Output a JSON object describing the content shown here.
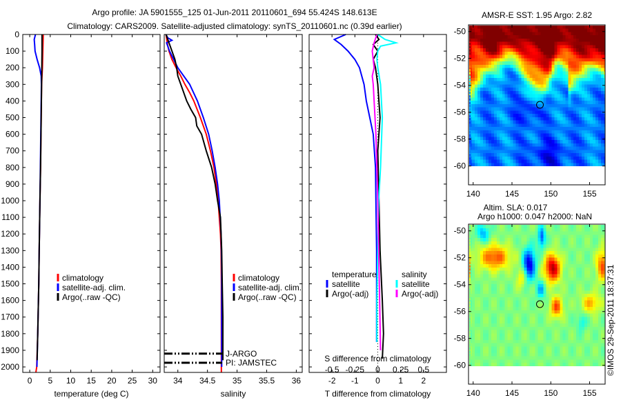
{
  "title": {
    "line1": "Argo profile: JA 5901555_125 01-Jun-2011 20110601_694 55.424S 148.613E",
    "line2": "Climatology: CARS2009. Satellite-adjusted climatology: synTS_20110601.nc (0.39d earlier)"
  },
  "colors": {
    "climatology": "#ff0000",
    "satellite": "#0000ff",
    "argo": "#000000",
    "sal_satellite": "#00ffff",
    "sal_argo": "#ff00ff"
  },
  "watermark": "©IMOS 29-Sep-2011 18:37:31",
  "chart_data": [
    {
      "type": "line",
      "name": "temperature-profile",
      "xlabel": "temperature (deg C)",
      "ylabel": "",
      "xlim": [
        -1.7,
        31.8
      ],
      "ylim": [
        2033,
        0
      ],
      "xticks": [
        "0",
        "5",
        "10",
        "15",
        "20",
        "25",
        "30"
      ],
      "xtick_values": [
        0,
        5,
        10,
        15,
        20,
        25,
        30
      ],
      "yticks": [
        "0",
        "100",
        "200",
        "300",
        "400",
        "500",
        "600",
        "700",
        "800",
        "900",
        "1000",
        "1100",
        "1200",
        "1300",
        "1400",
        "1500",
        "1600",
        "1700",
        "1800",
        "1900",
        "2000"
      ],
      "legend": [
        "climatology",
        "satellite-adj. clim.",
        "Argo(..raw -QC)"
      ],
      "legend_position": "lower-center",
      "series": [
        {
          "name": "climatology",
          "depth": [
            0,
            100,
            200,
            300,
            500,
            800,
            1000,
            1300,
            1500,
            1800,
            2000,
            2033
          ],
          "values": [
            3.3,
            3.2,
            3.1,
            2.9,
            2.8,
            2.65,
            2.5,
            2.3,
            2.2,
            1.95,
            1.7,
            1.5
          ]
        },
        {
          "name": "satellite-adj. clim.",
          "depth": [
            0,
            30,
            60,
            100,
            150,
            200,
            250,
            300,
            400,
            500,
            800,
            1000,
            1300,
            1500,
            1800,
            2000
          ],
          "values": [
            1.4,
            1.1,
            1.2,
            1.3,
            1.8,
            2.4,
            2.8,
            2.85,
            2.8,
            2.75,
            2.6,
            2.5,
            2.3,
            2.2,
            1.95,
            1.75
          ]
        },
        {
          "name": "Argo(..raw -QC)",
          "depth": [
            0,
            50,
            100,
            200,
            300,
            500,
            800,
            1000,
            1300,
            1500,
            1800,
            1960
          ],
          "values": [
            3.0,
            3.0,
            3.0,
            2.95,
            2.9,
            2.8,
            2.65,
            2.5,
            2.3,
            2.2,
            1.95,
            1.8
          ]
        }
      ]
    },
    {
      "type": "line",
      "name": "salinity-profile",
      "xlabel": "salinity",
      "xlim": [
        33.77,
        36.1
      ],
      "ylim": [
        2033,
        0
      ],
      "xticks": [
        "34",
        "34.5",
        "35",
        "35.5",
        "36"
      ],
      "xtick_values": [
        34,
        34.5,
        35,
        35.5,
        36
      ],
      "legend": [
        "climatology",
        "satellite-adj. clim.",
        "Argo(..raw -QC)"
      ],
      "legend_position": "lower-center",
      "annotations": [
        "J-ARGO",
        "PI: JAMSTEC"
      ],
      "series": [
        {
          "name": "climatology",
          "depth": [
            0,
            50,
            100,
            150,
            200,
            250,
            300,
            350,
            400,
            500,
            600,
            700,
            800,
            900,
            1000,
            1100,
            1200,
            1300,
            1500,
            2000,
            2033
          ],
          "values": [
            33.8,
            33.82,
            33.85,
            33.9,
            33.97,
            34.05,
            34.12,
            34.2,
            34.27,
            34.38,
            34.48,
            34.55,
            34.61,
            34.65,
            34.68,
            34.7,
            34.72,
            34.73,
            34.735,
            34.735,
            34.735
          ]
        },
        {
          "name": "satellite-adj. clim.",
          "depth": [
            0,
            20,
            35,
            50,
            100,
            200,
            300,
            400,
            500,
            600,
            700,
            800,
            900,
            1000,
            1200,
            1400,
            2000
          ],
          "values": [
            33.8,
            33.83,
            33.9,
            33.81,
            33.86,
            34.0,
            34.2,
            34.33,
            34.43,
            34.52,
            34.58,
            34.63,
            34.67,
            34.7,
            34.73,
            34.74,
            34.74
          ]
        },
        {
          "name": "Argo(..raw -QC)",
          "depth": [
            0,
            100,
            150,
            200,
            250,
            300,
            400,
            450,
            500,
            550,
            600,
            700,
            800,
            900,
            1000,
            1100,
            1300,
            1500,
            1700,
            1900,
            1960
          ],
          "values": [
            33.8,
            33.9,
            33.95,
            33.98,
            34.0,
            34.05,
            34.15,
            34.22,
            34.3,
            34.32,
            34.4,
            34.48,
            34.57,
            34.63,
            34.67,
            34.72,
            34.74,
            34.75,
            34.76,
            34.76,
            34.76
          ]
        }
      ]
    },
    {
      "type": "line",
      "name": "difference-profile",
      "xlabel": "T difference from climatology",
      "xlabel2": "S difference from climatology",
      "xlim": [
        -3,
        3
      ],
      "xlim_S": [
        -0.75,
        0.75
      ],
      "ylim": [
        2033,
        0
      ],
      "xticks": [
        "-2",
        "-1",
        "0",
        "1",
        "2"
      ],
      "xtick_values": [
        -2,
        -1,
        0,
        1,
        2
      ],
      "xticks_S": [
        "-0.5",
        "-0.25",
        "0",
        "0.25",
        "0.5"
      ],
      "xtick_values_S": [
        -0.5,
        -0.25,
        0,
        0.25,
        0.5
      ],
      "legend_headers": [
        "temperature",
        "salinity"
      ],
      "legend": {
        "t_sat": "satellite",
        "t_argo": "Argo(-adj)",
        "s_sat": "satellite",
        "s_argo": "Argo(-adj)"
      },
      "series": [
        {
          "name": "T satellite",
          "axis": "T",
          "depth": [
            0,
            30,
            60,
            100,
            150,
            200,
            300,
            400,
            500,
            600,
            800,
            1000,
            1300,
            1500,
            1800,
            1850
          ],
          "values": [
            -1.4,
            -1.9,
            -1.6,
            -1.3,
            -1.0,
            -0.8,
            -0.6,
            -0.5,
            -0.35,
            -0.2,
            -0.1,
            -0.08,
            -0.05,
            -0.05,
            -0.05,
            -0.05
          ]
        },
        {
          "name": "T Argo(-adj)",
          "axis": "T",
          "depth": [
            0,
            30,
            60,
            100,
            150,
            200,
            300,
            500,
            700,
            1000,
            1300,
            1600,
            1800,
            1950
          ],
          "values": [
            -0.1,
            0.05,
            -0.2,
            0.0,
            -0.2,
            -0.1,
            0.0,
            0.1,
            0.0,
            0.05,
            0.1,
            0.2,
            0.25,
            0.2
          ]
        },
        {
          "name": "S satellite",
          "axis": "S",
          "depth": [
            0,
            30,
            50,
            70,
            100,
            150,
            200,
            300,
            500,
            800,
            1000,
            1300,
            1600,
            1850
          ],
          "values": [
            0.0,
            0.08,
            0.2,
            0.03,
            0.0,
            -0.01,
            0.0,
            0.03,
            0.05,
            0.03,
            0.01,
            0.0,
            -0.01,
            -0.01
          ]
        },
        {
          "name": "S Argo(-adj)",
          "axis": "S",
          "depth": [
            0,
            50,
            100,
            150,
            200,
            250,
            300,
            400,
            500,
            600,
            800,
            1000,
            1300,
            1600,
            1900
          ],
          "values": [
            -0.01,
            -0.04,
            -0.06,
            -0.05,
            -0.04,
            -0.06,
            -0.05,
            -0.04,
            -0.03,
            -0.02,
            -0.01,
            0.0,
            0.01,
            0.02,
            0.03
          ]
        }
      ]
    },
    {
      "type": "heatmap",
      "name": "sst-map",
      "title": "AMSR-E SST: 1.95 Argo: 2.82",
      "xlim": [
        139.4,
        157.0
      ],
      "ylim": [
        -61.4,
        -49.5
      ],
      "data_ylim": [
        -60,
        -49.5
      ],
      "xticks": [
        "140",
        "145",
        "150",
        "155"
      ],
      "xtick_values": [
        140,
        145,
        150,
        155
      ],
      "yticks": [
        "-50",
        "-52",
        "-54",
        "-56",
        "-58",
        "-60"
      ],
      "ytick_values": [
        -50,
        -52,
        -54,
        -56,
        -58,
        -60
      ],
      "marker": {
        "lon": 148.6,
        "lat": -55.45
      }
    },
    {
      "type": "heatmap",
      "name": "sla-map",
      "title": "Altim. SLA: 0.017",
      "subtitle": "Argo h1000: 0.047 h2000: NaN",
      "xlim": [
        139.4,
        157.0
      ],
      "ylim": [
        -61.4,
        -49.5
      ],
      "data_ylim": [
        -60,
        -49.5
      ],
      "xticks": [
        "140",
        "145",
        "150",
        "155"
      ],
      "xtick_values": [
        140,
        145,
        150,
        155
      ],
      "yticks": [
        "-50",
        "-52",
        "-54",
        "-56",
        "-58",
        "-60"
      ],
      "ytick_values": [
        -50,
        -52,
        -54,
        -56,
        -58,
        -60
      ],
      "marker": {
        "lon": 148.6,
        "lat": -55.45
      }
    }
  ]
}
